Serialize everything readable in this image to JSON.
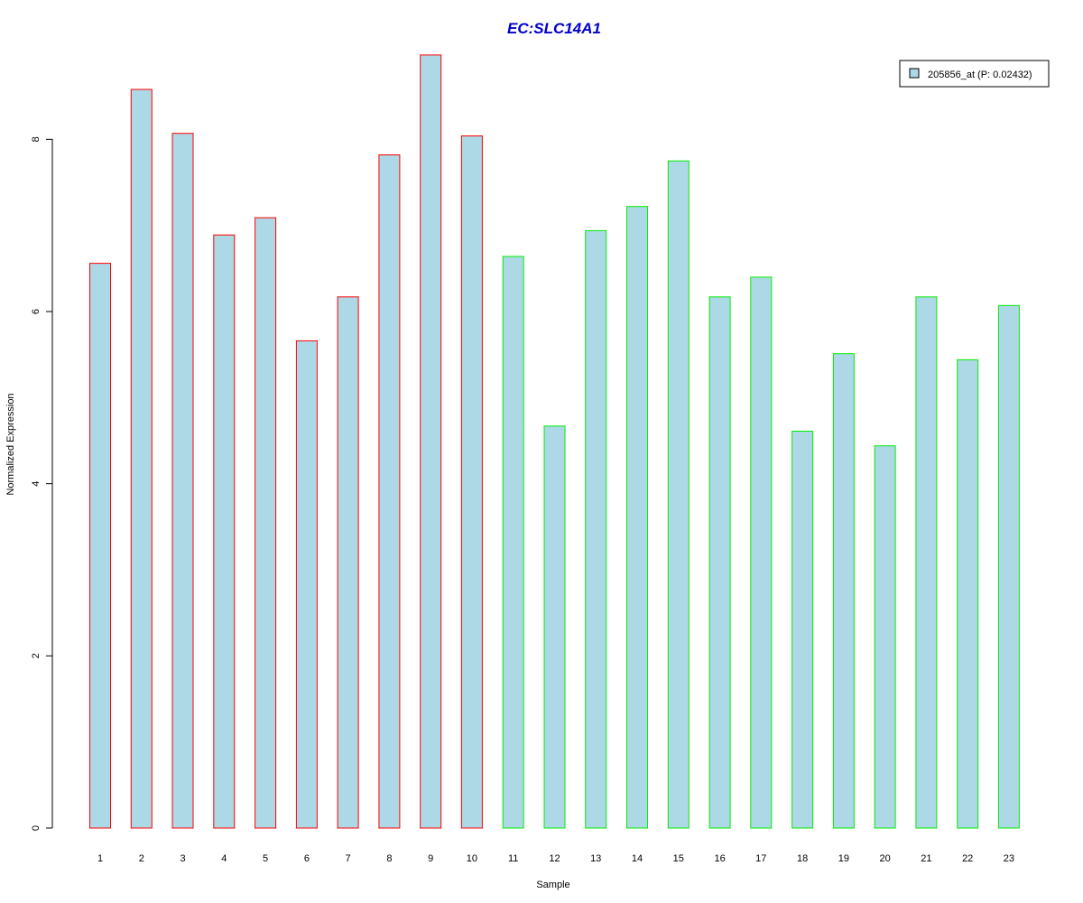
{
  "chart_data": {
    "type": "bar",
    "title": "EC:SLC14A1",
    "xlabel": "Sample",
    "ylabel": "Normalized Expression",
    "categories": [
      "1",
      "2",
      "3",
      "4",
      "5",
      "6",
      "7",
      "8",
      "9",
      "10",
      "11",
      "12",
      "13",
      "14",
      "15",
      "16",
      "17",
      "18",
      "19",
      "20",
      "21",
      "22",
      "23"
    ],
    "y_ticks": [
      "0",
      "2",
      "4",
      "6",
      "8"
    ],
    "ylim": [
      0,
      9.0
    ],
    "grid": false,
    "legend": {
      "label": "205856_at (P: 0.02432)",
      "position": "top-right"
    },
    "series": [
      {
        "name": "205856_at (P: 0.02432)",
        "fill_color": "#add8e6",
        "values": [
          6.56,
          8.58,
          8.07,
          6.89,
          7.09,
          5.66,
          6.17,
          7.82,
          8.98,
          8.04,
          6.64,
          4.67,
          6.94,
          7.22,
          7.75,
          6.17,
          6.4,
          4.61,
          5.51,
          4.44,
          6.17,
          5.44,
          6.07
        ],
        "border_colors": [
          "#ff0000",
          "#ff0000",
          "#ff0000",
          "#ff0000",
          "#ff0000",
          "#ff0000",
          "#ff0000",
          "#ff0000",
          "#ff0000",
          "#ff0000",
          "#00ee00",
          "#00ee00",
          "#00ee00",
          "#00ee00",
          "#00ee00",
          "#00ee00",
          "#00ee00",
          "#00ee00",
          "#00ee00",
          "#00ee00",
          "#00ee00",
          "#00ee00",
          "#00ee00"
        ]
      }
    ],
    "colors": {
      "title": "#0000cc",
      "axis": "#000000"
    }
  }
}
